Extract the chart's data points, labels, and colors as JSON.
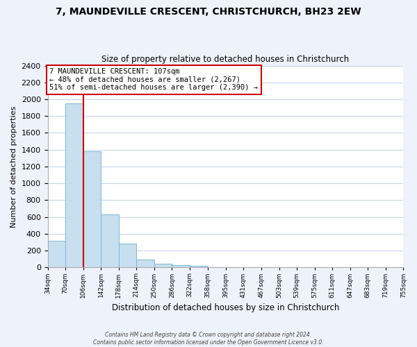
{
  "title": "7, MAUNDEVILLE CRESCENT, CHRISTCHURCH, BH23 2EW",
  "subtitle": "Size of property relative to detached houses in Christchurch",
  "xlabel": "Distribution of detached houses by size in Christchurch",
  "ylabel": "Number of detached properties",
  "bar_edges": [
    34,
    70,
    106,
    142,
    178,
    214,
    250,
    286,
    322,
    358,
    395,
    431,
    467,
    503,
    539,
    575,
    611,
    647,
    683,
    719,
    755
  ],
  "bar_heights": [
    320,
    1950,
    1380,
    630,
    280,
    95,
    45,
    28,
    20,
    0,
    0,
    0,
    0,
    0,
    0,
    0,
    0,
    0,
    0,
    0
  ],
  "bar_color": "#c8dff0",
  "bar_edge_color": "#7ab8d4",
  "vline_x": 107,
  "vline_color": "#cc0000",
  "annotation_text": "7 MAUNDEVILLE CRESCENT: 107sqm\n← 48% of detached houses are smaller (2,267)\n51% of semi-detached houses are larger (2,390) →",
  "annotation_box_color": "#ffffff",
  "annotation_box_edge_color": "#cc0000",
  "ylim": [
    0,
    2400
  ],
  "yticks": [
    0,
    200,
    400,
    600,
    800,
    1000,
    1200,
    1400,
    1600,
    1800,
    2000,
    2200,
    2400
  ],
  "x_tick_labels": [
    "34sqm",
    "70sqm",
    "106sqm",
    "142sqm",
    "178sqm",
    "214sqm",
    "250sqm",
    "286sqm",
    "322sqm",
    "358sqm",
    "395sqm",
    "431sqm",
    "467sqm",
    "503sqm",
    "539sqm",
    "575sqm",
    "611sqm",
    "647sqm",
    "683sqm",
    "719sqm",
    "755sqm"
  ],
  "footer_line1": "Contains HM Land Registry data © Crown copyright and database right 2024.",
  "footer_line2": "Contains public sector information licensed under the Open Government Licence v3.0.",
  "background_color": "#eef2fb",
  "plot_background_color": "#ffffff",
  "grid_color": "#c8d4e8"
}
